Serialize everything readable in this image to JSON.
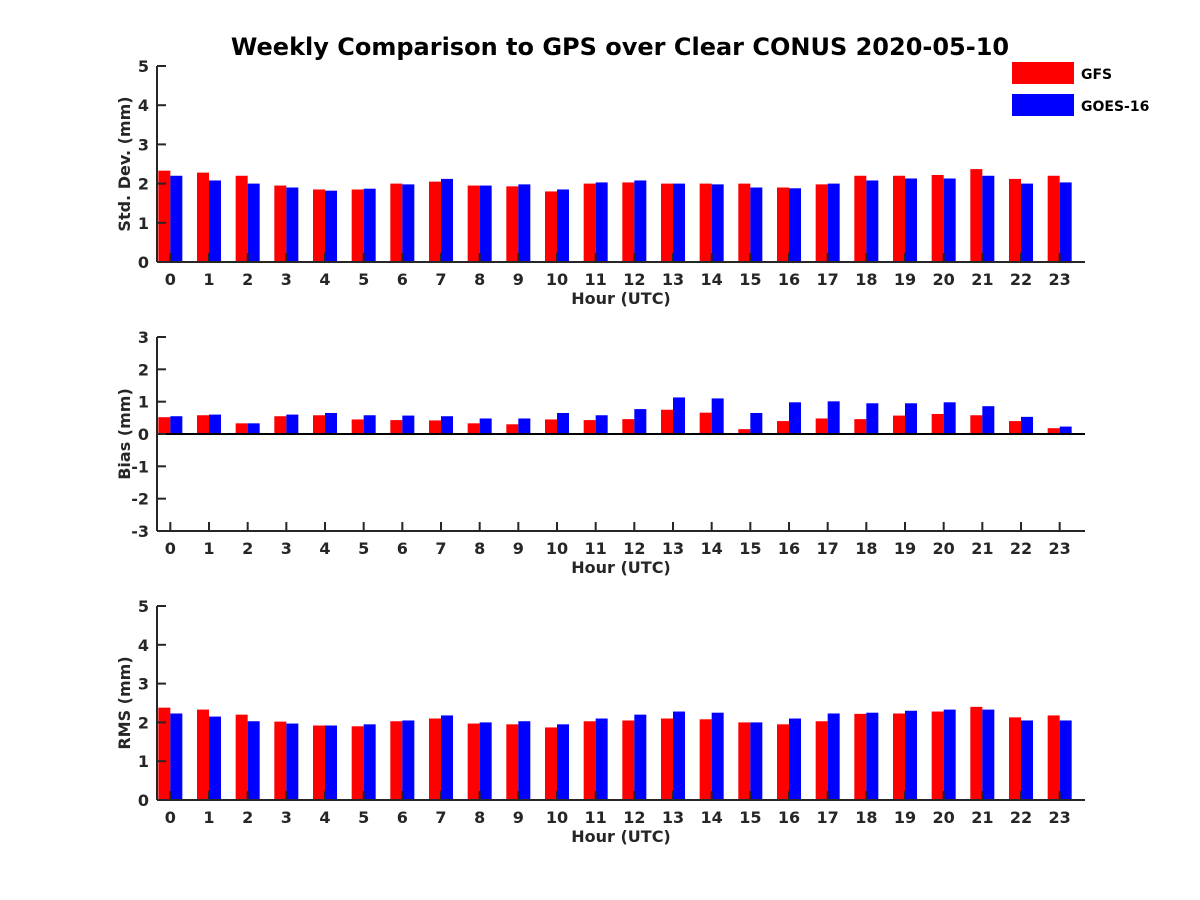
{
  "title": "Weekly Comparison to GPS over Clear CONUS 2020-05-10",
  "legend": [
    {
      "name": "GFS",
      "color": "#ff0000"
    },
    {
      "name": "GOES-16",
      "color": "#0000ff"
    }
  ],
  "chart_data": [
    {
      "type": "bar",
      "ylabel": "Std. Dev. (mm)",
      "xlabel": "Hour (UTC)",
      "ylim": [
        0,
        5
      ],
      "yticks": [
        "0",
        "1",
        "2",
        "3",
        "4",
        "5"
      ],
      "categories": [
        "0",
        "1",
        "2",
        "3",
        "4",
        "5",
        "6",
        "7",
        "8",
        "9",
        "10",
        "11",
        "12",
        "13",
        "14",
        "15",
        "16",
        "17",
        "18",
        "19",
        "20",
        "21",
        "22",
        "23"
      ],
      "series": [
        {
          "name": "GFS",
          "values": [
            2.33,
            2.28,
            2.2,
            1.95,
            1.85,
            1.85,
            2.0,
            2.05,
            1.95,
            1.93,
            1.8,
            2.0,
            2.03,
            2.0,
            2.0,
            2.0,
            1.9,
            1.98,
            2.2,
            2.2,
            2.22,
            2.37,
            2.12,
            2.2
          ]
        },
        {
          "name": "GOES-16",
          "values": [
            2.2,
            2.08,
            2.0,
            1.9,
            1.82,
            1.87,
            1.98,
            2.12,
            1.95,
            1.98,
            1.85,
            2.03,
            2.08,
            2.0,
            1.98,
            1.9,
            1.88,
            2.0,
            2.08,
            2.13,
            2.13,
            2.2,
            2.0,
            2.03
          ]
        }
      ]
    },
    {
      "type": "bar",
      "ylabel": "Bias (mm)",
      "xlabel": "Hour (UTC)",
      "ylim": [
        -3,
        3
      ],
      "yticks": [
        "-3",
        "-2",
        "-1",
        "0",
        "1",
        "2",
        "3"
      ],
      "categories": [
        "0",
        "1",
        "2",
        "3",
        "4",
        "5",
        "6",
        "7",
        "8",
        "9",
        "10",
        "11",
        "12",
        "13",
        "14",
        "15",
        "16",
        "17",
        "18",
        "19",
        "20",
        "21",
        "22",
        "23"
      ],
      "series": [
        {
          "name": "GFS",
          "values": [
            0.52,
            0.58,
            0.33,
            0.55,
            0.58,
            0.45,
            0.43,
            0.42,
            0.33,
            0.3,
            0.45,
            0.43,
            0.46,
            0.75,
            0.66,
            0.15,
            0.4,
            0.48,
            0.46,
            0.57,
            0.62,
            0.58,
            0.4,
            0.18
          ]
        },
        {
          "name": "GOES-16",
          "values": [
            0.55,
            0.6,
            0.33,
            0.6,
            0.65,
            0.58,
            0.57,
            0.55,
            0.48,
            0.48,
            0.65,
            0.58,
            0.77,
            1.13,
            1.1,
            0.65,
            0.98,
            1.01,
            0.95,
            0.95,
            0.98,
            0.86,
            0.53,
            0.23
          ]
        }
      ]
    },
    {
      "type": "bar",
      "ylabel": "RMS (mm)",
      "xlabel": "Hour (UTC)",
      "ylim": [
        0,
        5
      ],
      "yticks": [
        "0",
        "1",
        "2",
        "3",
        "4",
        "5"
      ],
      "categories": [
        "0",
        "1",
        "2",
        "3",
        "4",
        "5",
        "6",
        "7",
        "8",
        "9",
        "10",
        "11",
        "12",
        "13",
        "14",
        "15",
        "16",
        "17",
        "18",
        "19",
        "20",
        "21",
        "22",
        "23"
      ],
      "series": [
        {
          "name": "GFS",
          "values": [
            2.38,
            2.33,
            2.2,
            2.02,
            1.92,
            1.9,
            2.03,
            2.1,
            1.97,
            1.95,
            1.87,
            2.03,
            2.05,
            2.1,
            2.08,
            2.0,
            1.95,
            2.03,
            2.22,
            2.23,
            2.28,
            2.4,
            2.13,
            2.18
          ]
        },
        {
          "name": "GOES-16",
          "values": [
            2.23,
            2.15,
            2.03,
            1.97,
            1.92,
            1.95,
            2.05,
            2.18,
            2.0,
            2.03,
            1.95,
            2.1,
            2.2,
            2.28,
            2.25,
            2.0,
            2.1,
            2.23,
            2.25,
            2.3,
            2.33,
            2.33,
            2.05,
            2.05
          ]
        }
      ]
    }
  ]
}
